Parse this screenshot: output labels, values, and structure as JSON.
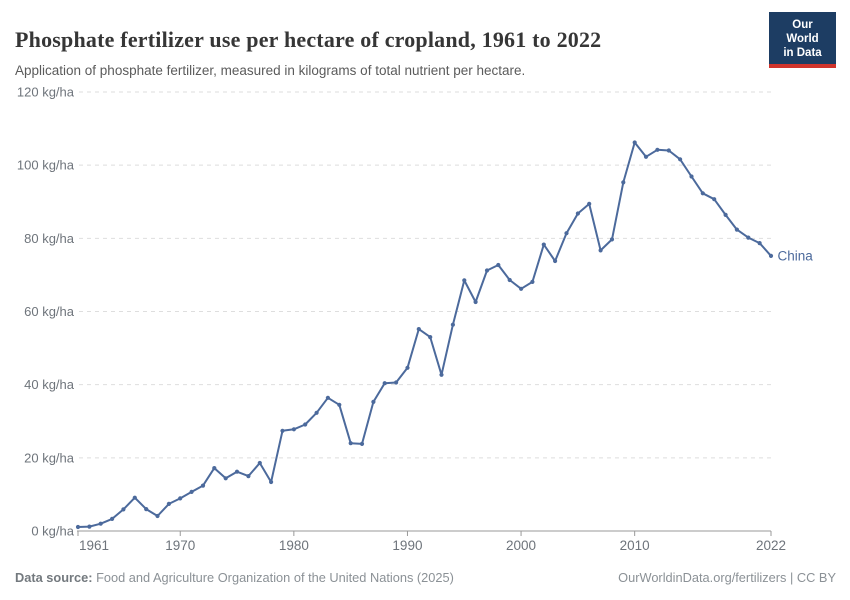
{
  "header": {
    "title": "Phosphate fertilizer use per hectare of cropland, 1961 to 2022",
    "subtitle": "Application of phosphate fertilizer, measured in kilograms of total nutrient per hectare."
  },
  "logo": {
    "line1": "Our World",
    "line2": "in Data"
  },
  "colors": {
    "series_line": "#4C6A9C",
    "logo_navy": "#1D3D63",
    "logo_red": "#D0342C",
    "gridline": "#dedede",
    "axis": "#999999",
    "axis_label": "#6e747b"
  },
  "chart_data": {
    "type": "line",
    "title": "Phosphate fertilizer use per hectare of cropland, 1961 to 2022",
    "xlabel": "",
    "ylabel": "kg/ha",
    "ylim": [
      0,
      120
    ],
    "xlim": [
      1961,
      2022
    ],
    "grid": "horizontal-dashed",
    "legend": "end-of-line-label",
    "yticks": [
      0,
      20,
      40,
      60,
      80,
      100,
      120
    ],
    "ytick_labels": [
      "0 kg/ha",
      "20 kg/ha",
      "40 kg/ha",
      "60 kg/ha",
      "80 kg/ha",
      "100 kg/ha",
      "120 kg/ha"
    ],
    "xticks": [
      1961,
      1970,
      1980,
      1990,
      2000,
      2010,
      2022
    ],
    "x": [
      1961,
      1962,
      1963,
      1964,
      1965,
      1966,
      1967,
      1968,
      1969,
      1970,
      1971,
      1972,
      1973,
      1974,
      1975,
      1976,
      1977,
      1978,
      1979,
      1980,
      1981,
      1982,
      1983,
      1984,
      1985,
      1986,
      1987,
      1988,
      1989,
      1990,
      1991,
      1992,
      1993,
      1994,
      1995,
      1996,
      1997,
      1998,
      1999,
      2000,
      2001,
      2002,
      2003,
      2004,
      2005,
      2006,
      2007,
      2008,
      2009,
      2010,
      2011,
      2012,
      2013,
      2014,
      2015,
      2016,
      2017,
      2018,
      2019,
      2020,
      2021,
      2022
    ],
    "series": [
      {
        "name": "China",
        "color": "#4C6A9C",
        "values": [
          1.1,
          1.2,
          2.0,
          3.3,
          5.9,
          9.1,
          6.0,
          4.1,
          7.4,
          8.9,
          10.7,
          12.4,
          17.2,
          14.4,
          16.2,
          15.0,
          18.6,
          13.4,
          27.4,
          27.8,
          29.1,
          32.3,
          36.4,
          34.5,
          24.0,
          23.8,
          35.3,
          40.4,
          40.6,
          44.6,
          55.2,
          53.0,
          42.7,
          56.4,
          68.5,
          62.6,
          71.2,
          72.7,
          68.6,
          66.2,
          68.1,
          78.3,
          73.8,
          81.4,
          86.8,
          89.4,
          76.7,
          79.7,
          95.3,
          106.2,
          102.3,
          104.2,
          104.0,
          101.6,
          96.9,
          92.3,
          90.7,
          86.4,
          82.4,
          80.2,
          78.7,
          75.2
        ]
      }
    ]
  },
  "footer": {
    "source_label": "Data source:",
    "source_text": " Food and Agriculture Organization of the United Nations (2025)",
    "url": "OurWorldinData.org/fertilizers",
    "license_suffix": " | CC BY"
  }
}
